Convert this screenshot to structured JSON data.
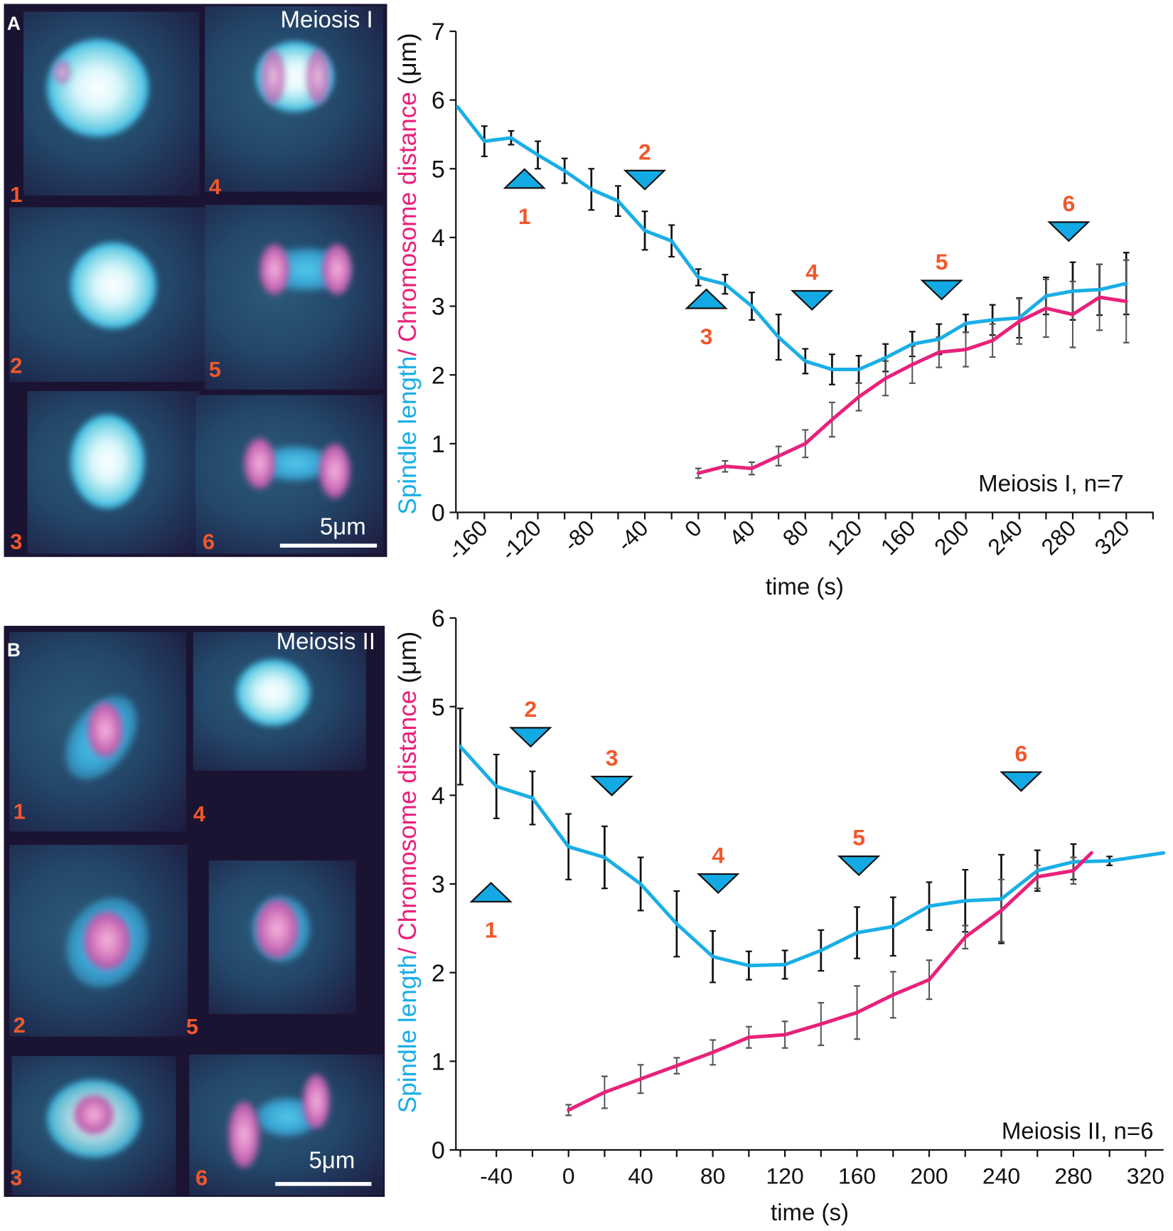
{
  "panels": [
    {
      "letter": "A",
      "title": "Meiosis I",
      "cells": [
        "1",
        "2",
        "3",
        "4",
        "5",
        "6"
      ],
      "scale_bar": "5μm"
    },
    {
      "letter": "B",
      "title": "Meiosis II",
      "cells": [
        "1",
        "2",
        "3",
        "4",
        "5",
        "6"
      ],
      "scale_bar": "5μm"
    }
  ],
  "colors": {
    "spindle": "#1aaee6",
    "chromosome": "#e8217a",
    "marker_fill": "#13a9e4",
    "marker_label": "#f0582a"
  },
  "chart_data": [
    {
      "type": "line",
      "xlabel": "time (s)",
      "ylabel_parts": [
        "Spindle length",
        "/ Chromosome distance",
        "(μm)"
      ],
      "annotation": "Meiosis I, n=7",
      "ylim": [
        0,
        7
      ],
      "yticks": [
        0,
        1,
        2,
        3,
        4,
        5,
        6,
        7
      ],
      "xticks": [
        -160,
        -120,
        -80,
        -40,
        0,
        40,
        80,
        120,
        160,
        200,
        240,
        280,
        320
      ],
      "series": [
        {
          "name": "Spindle length",
          "color": "#1aaee6",
          "x": [
            -180,
            -160,
            -140,
            -120,
            -100,
            -80,
            -60,
            -40,
            -20,
            0,
            20,
            40,
            60,
            80,
            100,
            120,
            140,
            160,
            180,
            200,
            220,
            240,
            260,
            280,
            300,
            320
          ],
          "y": [
            5.9,
            5.4,
            5.45,
            5.2,
            4.97,
            4.7,
            4.53,
            4.1,
            3.95,
            3.42,
            3.32,
            3.0,
            2.55,
            2.2,
            2.08,
            2.08,
            2.25,
            2.45,
            2.52,
            2.75,
            2.8,
            2.83,
            3.15,
            3.22,
            3.24,
            3.33
          ],
          "err": [
            0,
            0.22,
            0.1,
            0.2,
            0.18,
            0.3,
            0.22,
            0.28,
            0.23,
            0.12,
            0.14,
            0.2,
            0.33,
            0.18,
            0.22,
            0.2,
            0.2,
            0.18,
            0.22,
            0.13,
            0.22,
            0.29,
            0.27,
            0.42,
            0.37,
            0.45
          ]
        },
        {
          "name": "Chromosome distance",
          "color": "#e8217a",
          "x": [
            0,
            20,
            40,
            60,
            80,
            100,
            120,
            140,
            160,
            180,
            200,
            220,
            240,
            260,
            280,
            300,
            320
          ],
          "y": [
            0.57,
            0.67,
            0.64,
            0.82,
            1.0,
            1.35,
            1.68,
            1.95,
            2.15,
            2.33,
            2.37,
            2.5,
            2.78,
            2.97,
            2.88,
            3.13,
            3.07
          ],
          "err": [
            0.07,
            0.08,
            0.09,
            0.14,
            0.2,
            0.25,
            0.2,
            0.25,
            0.27,
            0.22,
            0.25,
            0.24,
            0.33,
            0.42,
            0.48,
            0.48,
            0.6
          ]
        }
      ],
      "markers": [
        {
          "label": "1",
          "x": -130,
          "y": 4.72,
          "direction": "up"
        },
        {
          "label": "2",
          "x": -40,
          "y": 4.7,
          "direction": "down"
        },
        {
          "label": "3",
          "x": 6,
          "y": 2.97,
          "direction": "up"
        },
        {
          "label": "4",
          "x": 85,
          "y": 2.95,
          "direction": "down"
        },
        {
          "label": "5",
          "x": 182,
          "y": 3.1,
          "direction": "down"
        },
        {
          "label": "6",
          "x": 277,
          "y": 3.95,
          "direction": "down"
        }
      ]
    },
    {
      "type": "line",
      "xlabel": "time (s)",
      "ylabel_parts": [
        "Spindle length",
        "/ Chromosome distance",
        "(μm)"
      ],
      "annotation": "Meiosis II, n=6",
      "ylim": [
        0,
        6
      ],
      "yticks": [
        0,
        1,
        2,
        3,
        4,
        5,
        6
      ],
      "xticks": [
        -40,
        0,
        40,
        80,
        120,
        160,
        200,
        240,
        280,
        320
      ],
      "series": [
        {
          "name": "Spindle length",
          "color": "#1aaee6",
          "x": [
            -60,
            -40,
            -20,
            0,
            20,
            40,
            60,
            80,
            100,
            120,
            140,
            160,
            180,
            200,
            220,
            240,
            260,
            280,
            300,
            330
          ],
          "y": [
            4.55,
            4.1,
            3.97,
            3.42,
            3.3,
            3.0,
            2.55,
            2.18,
            2.08,
            2.09,
            2.25,
            2.45,
            2.52,
            2.75,
            2.81,
            2.83,
            3.15,
            3.25,
            3.26,
            3.35
          ],
          "err": [
            0.43,
            0.36,
            0.3,
            0.37,
            0.35,
            0.3,
            0.37,
            0.29,
            0.16,
            0.16,
            0.23,
            0.29,
            0.33,
            0.27,
            0.35,
            0.5,
            0.23,
            0.2,
            0.05,
            0
          ]
        },
        {
          "name": "Chromosome distance",
          "color": "#e8217a",
          "x": [
            0,
            20,
            40,
            60,
            80,
            100,
            120,
            140,
            160,
            180,
            200,
            220,
            240,
            260,
            280,
            290
          ],
          "y": [
            0.45,
            0.65,
            0.8,
            0.95,
            1.1,
            1.27,
            1.3,
            1.42,
            1.55,
            1.75,
            1.92,
            2.4,
            2.7,
            3.08,
            3.15,
            3.35
          ],
          "err": [
            0.06,
            0.18,
            0.16,
            0.09,
            0.14,
            0.12,
            0.15,
            0.24,
            0.3,
            0.26,
            0.22,
            0.13,
            0.35,
            0.13,
            0.15,
            0
          ]
        }
      ],
      "markers": [
        {
          "label": "1",
          "x": -43,
          "y": 2.8,
          "direction": "up"
        },
        {
          "label": "2",
          "x": -21,
          "y": 4.55,
          "direction": "down"
        },
        {
          "label": "3",
          "x": 24,
          "y": 4.0,
          "direction": "down"
        },
        {
          "label": "4",
          "x": 83,
          "y": 2.9,
          "direction": "down"
        },
        {
          "label": "5",
          "x": 161,
          "y": 3.1,
          "direction": "down"
        },
        {
          "label": "6",
          "x": 251,
          "y": 4.05,
          "direction": "down"
        }
      ]
    }
  ]
}
